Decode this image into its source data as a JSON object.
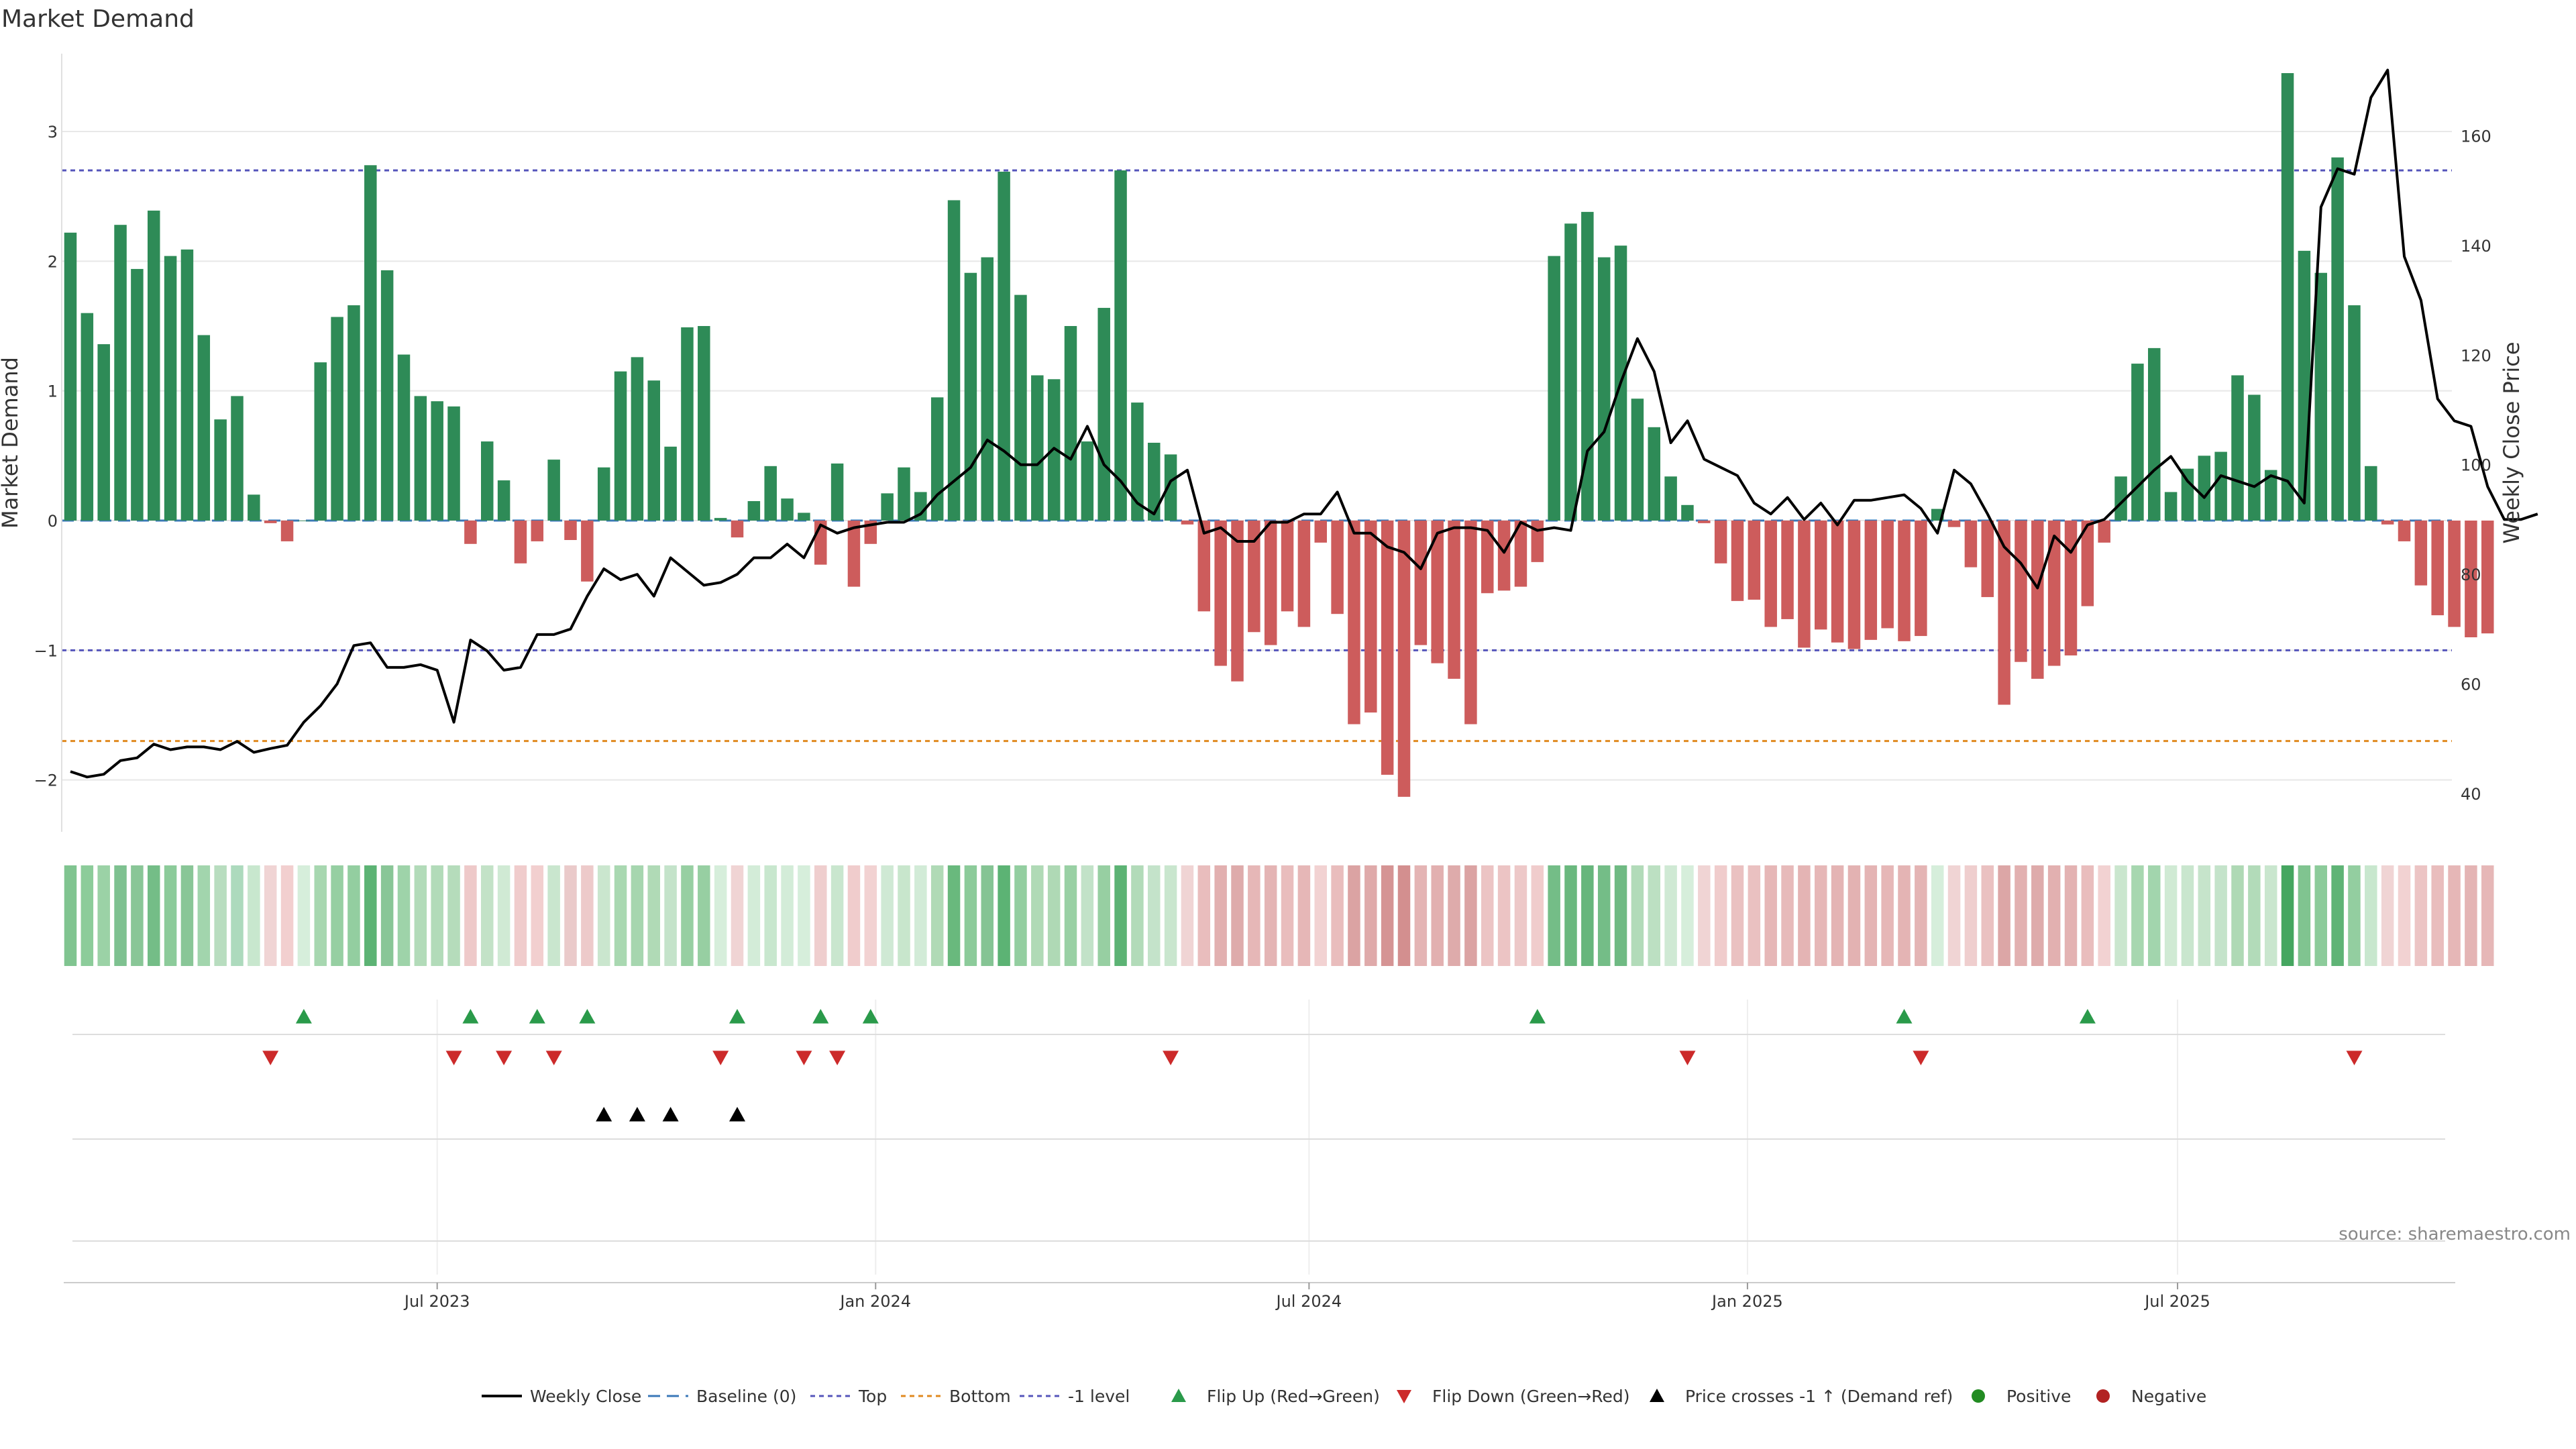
{
  "chart_data": {
    "type": "bar",
    "title": "Market Demand",
    "ylabel_left": "Market Demand",
    "ylabel_right": "Weekly Close Price",
    "ylim_left": [
      -2.4,
      3.6
    ],
    "ylim_right": [
      33,
      175
    ],
    "yticks_left": [
      {
        "v": 3,
        "label": "3"
      },
      {
        "v": 2,
        "label": "2"
      },
      {
        "v": 1,
        "label": "1"
      },
      {
        "v": 0,
        "label": "0"
      },
      {
        "v": -1,
        "label": "−1"
      },
      {
        "v": -2,
        "label": "−2"
      }
    ],
    "yticks_right": [
      {
        "v": 160,
        "label": "160"
      },
      {
        "v": 140,
        "label": "140"
      },
      {
        "v": 120,
        "label": "120"
      },
      {
        "v": 100,
        "label": "100"
      },
      {
        "v": 80,
        "label": "80"
      },
      {
        "v": 60,
        "label": "60"
      },
      {
        "v": 40,
        "label": "40"
      }
    ],
    "x_ticks": [
      {
        "index": 22,
        "label": "Jul 2023"
      },
      {
        "index": 48.3,
        "label": "Jan 2024"
      },
      {
        "index": 74.3,
        "label": "Jul 2024"
      },
      {
        "index": 100.6,
        "label": "Jan 2025"
      },
      {
        "index": 126.4,
        "label": "Jul 2025"
      }
    ],
    "levels": {
      "top": 2.7,
      "minus_one": -1,
      "bottom": -1.7,
      "baseline": 0
    },
    "demand": [
      2.22,
      1.6,
      1.36,
      2.28,
      1.94,
      2.39,
      2.04,
      2.09,
      1.43,
      0.78,
      0.96,
      0.2,
      -0.02,
      -0.16,
      0.0,
      1.22,
      1.57,
      1.66,
      2.74,
      1.93,
      1.28,
      0.96,
      0.92,
      0.88,
      -0.18,
      0.61,
      0.31,
      -0.33,
      -0.16,
      0.47,
      -0.15,
      -0.47,
      0.41,
      1.15,
      1.26,
      1.08,
      0.57,
      1.49,
      1.5,
      0.02,
      -0.13,
      0.15,
      0.42,
      0.17,
      0.06,
      -0.34,
      0.44,
      -0.51,
      -0.18,
      0.21,
      0.41,
      0.22,
      0.95,
      2.47,
      1.91,
      2.03,
      2.69,
      1.74,
      1.12,
      1.09,
      1.5,
      0.61,
      1.64,
      2.7,
      0.91,
      0.6,
      0.51,
      -0.03,
      -0.7,
      -1.12,
      -1.24,
      -0.86,
      -0.96,
      -0.7,
      -0.82,
      -0.17,
      -0.72,
      -1.57,
      -1.48,
      -1.96,
      -2.13,
      -0.96,
      -1.1,
      -1.22,
      -1.57,
      -0.56,
      -0.54,
      -0.51,
      -0.32,
      2.04,
      2.29,
      2.38,
      2.03,
      2.12,
      0.94,
      0.72,
      0.34,
      0.12,
      -0.02,
      -0.33,
      -0.62,
      -0.61,
      -0.82,
      -0.76,
      -0.98,
      -0.84,
      -0.94,
      -0.99,
      -0.92,
      -0.83,
      -0.93,
      -0.89,
      0.09,
      -0.05,
      -0.36,
      -0.59,
      -1.42,
      -1.09,
      -1.22,
      -1.12,
      -1.04,
      -0.66,
      -0.17,
      0.34,
      1.21,
      1.33,
      0.22,
      0.4,
      0.5,
      0.53,
      1.12,
      0.97,
      0.39,
      3.45,
      2.08,
      1.91,
      2.8,
      1.66,
      0.42,
      -0.03,
      -0.16,
      -0.5,
      -0.73,
      -0.82,
      -0.9,
      -0.87
    ],
    "price": [
      44,
      43,
      43.5,
      46,
      46.5,
      49,
      48,
      48.5,
      48.5,
      48,
      49.5,
      47.5,
      48.2,
      48.8,
      53,
      56,
      60,
      67,
      67.5,
      63,
      63,
      63.5,
      62.5,
      53,
      68,
      66,
      62.5,
      63,
      69,
      69,
      70,
      76,
      81,
      79,
      80,
      76,
      83,
      80.5,
      78,
      78.5,
      80,
      83,
      83,
      85.5,
      83,
      89,
      87.5,
      88.5,
      89,
      89.5,
      89.5,
      91,
      94.5,
      97,
      99.5,
      104.5,
      102.5,
      100,
      100,
      103,
      101,
      107,
      100,
      97,
      93,
      91,
      97,
      99,
      87.5,
      88.5,
      86,
      86,
      89.5,
      89.5,
      91,
      91,
      95,
      87.5,
      87.5,
      85,
      84,
      81,
      87.5,
      88.5,
      88.5,
      88,
      84,
      89.5,
      88,
      88.5,
      88,
      102.5,
      106,
      115,
      123,
      117,
      104,
      108,
      101,
      99.5,
      98,
      93,
      91,
      94,
      90,
      93,
      89,
      93.5,
      93.5,
      94,
      94.5,
      92,
      87.5,
      99,
      96.5,
      91,
      85,
      82,
      77.5,
      87,
      84,
      89,
      90,
      93,
      96,
      99,
      101.5,
      97,
      94,
      98,
      97,
      96,
      98,
      97,
      93,
      147,
      154,
      153,
      167,
      172,
      138,
      130,
      112,
      108,
      107,
      96,
      90,
      90,
      91
    ],
    "heat_colors": [
      "#80c490",
      "#8ccc9a",
      "#9bd2a6",
      "#7ec190",
      "#89c697",
      "#74bd87",
      "#8ccb9a",
      "#89c697",
      "#a2d5ad",
      "#b8ddbf",
      "#addabd",
      "#c8e7ce",
      "#f0d4d4",
      "#f2cfcf",
      "#d6eedb",
      "#a7d7b0",
      "#96cfa2",
      "#93cea0",
      "#5cb374",
      "#89c697",
      "#9ed3a9",
      "#b2dbb9",
      "#b2dbb9",
      "#b5dcbb",
      "#eec9c9",
      "#c3e2c7",
      "#d0ead4",
      "#f0cccc",
      "#f2cfcf",
      "#c9e6ce",
      "#eacaca",
      "#edcaca",
      "#cae6ce",
      "#a9d8b1",
      "#a6d6af",
      "#b0dab6",
      "#c4e3ca",
      "#97cfa2",
      "#97cfa2",
      "#d6eedb",
      "#f0d4d4",
      "#d3ecd8",
      "#c8e7ce",
      "#d3ecd8",
      "#d6eedb",
      "#efcece",
      "#c9e6ce",
      "#f0cccc",
      "#f2d2d2",
      "#cfe9d4",
      "#c8e6cc",
      "#d2ebd7",
      "#b0dab6",
      "#69b97d",
      "#8ccb9a",
      "#85c494",
      "#5cb374",
      "#93cea0",
      "#b0dab6",
      "#afd9b5",
      "#99d0a4",
      "#c2e2c8",
      "#97cfa2",
      "#5cb374",
      "#b2dbb9",
      "#c4e3ca",
      "#c9e6ce",
      "#f0d4d4",
      "#e9bdbd",
      "#e2b0b0",
      "#deabab",
      "#e6b7b7",
      "#e4b4b4",
      "#e9bdbd",
      "#e6b7b7",
      "#f2d2d2",
      "#e9bdbd",
      "#dba3a3",
      "#dfaaaa",
      "#d59494",
      "#d38f8f",
      "#e4b4b4",
      "#e2b0b0",
      "#deabab",
      "#dba3a3",
      "#ecc4c4",
      "#ecc4c4",
      "#edc8c8",
      "#f0cccc",
      "#74bd87",
      "#6ab87e",
      "#67b67c",
      "#74bd87",
      "#6fba83",
      "#b2dbb9",
      "#bce0c2",
      "#cfe9d4",
      "#d6eedb",
      "#f0d4d4",
      "#f0cccc",
      "#eac1c1",
      "#eac1c1",
      "#e6b7b7",
      "#e7baba",
      "#e4b4b4",
      "#e6b7b7",
      "#e4b4b4",
      "#e3b2b2",
      "#e4b4b4",
      "#e6b7b7",
      "#e4b4b4",
      "#e4b4b4",
      "#d6eedb",
      "#f0d4d4",
      "#efcece",
      "#eac1c1",
      "#dca6a6",
      "#e2b0b0",
      "#deabab",
      "#e2b0b0",
      "#e3b2b2",
      "#e9bdbd",
      "#f2d2d2",
      "#cae6ce",
      "#a7d7b0",
      "#a2d5ad",
      "#d0ead4",
      "#c9e6ce",
      "#c6e4cb",
      "#c4e3ca",
      "#afd9b5",
      "#b2dbb9",
      "#c9e6ce",
      "#45a660",
      "#80c490",
      "#8ccb9a",
      "#5fb476",
      "#93cea0",
      "#c8e7ce",
      "#f0d4d4",
      "#f2d2d2",
      "#ecc4c4",
      "#e9bdbd",
      "#e6b7b7",
      "#e4b4b4",
      "#e6b7b7"
    ],
    "flip_up_indices": [
      14,
      24,
      28,
      31,
      40,
      45,
      48,
      88,
      110,
      121
    ],
    "flip_down_indices": [
      12,
      23,
      26,
      29,
      39,
      44,
      46,
      66,
      97,
      111,
      137
    ],
    "price_cross_indices": [
      32,
      34,
      36,
      40
    ],
    "legend": [
      {
        "key": "weekly_close",
        "label": "Weekly Close"
      },
      {
        "key": "baseline",
        "label": "Baseline (0)"
      },
      {
        "key": "top",
        "label": "Top"
      },
      {
        "key": "bottom",
        "label": "Bottom"
      },
      {
        "key": "minus_one",
        "label": "-1 level"
      },
      {
        "key": "flip_up",
        "label": "Flip Up (Red→Green)"
      },
      {
        "key": "flip_down",
        "label": "Flip Down (Green→Red)"
      },
      {
        "key": "price_cross",
        "label": "Price crosses -1 ↑ (Demand ref)"
      },
      {
        "key": "positive",
        "label": "Positive"
      },
      {
        "key": "negative",
        "label": "Negative"
      }
    ],
    "source": "source: sharemaestro.com",
    "colors": {
      "positive": "#2e8b57",
      "negative": "#cd5c5c",
      "price": "#000000",
      "top": "#5555bb",
      "minus_one": "#5555bb",
      "bottom": "#e08a20",
      "baseline": "#3a78b8",
      "flip_up": "#2a9a4a",
      "flip_down": "#cc2a2a",
      "grid": "#e8e8e8"
    }
  }
}
